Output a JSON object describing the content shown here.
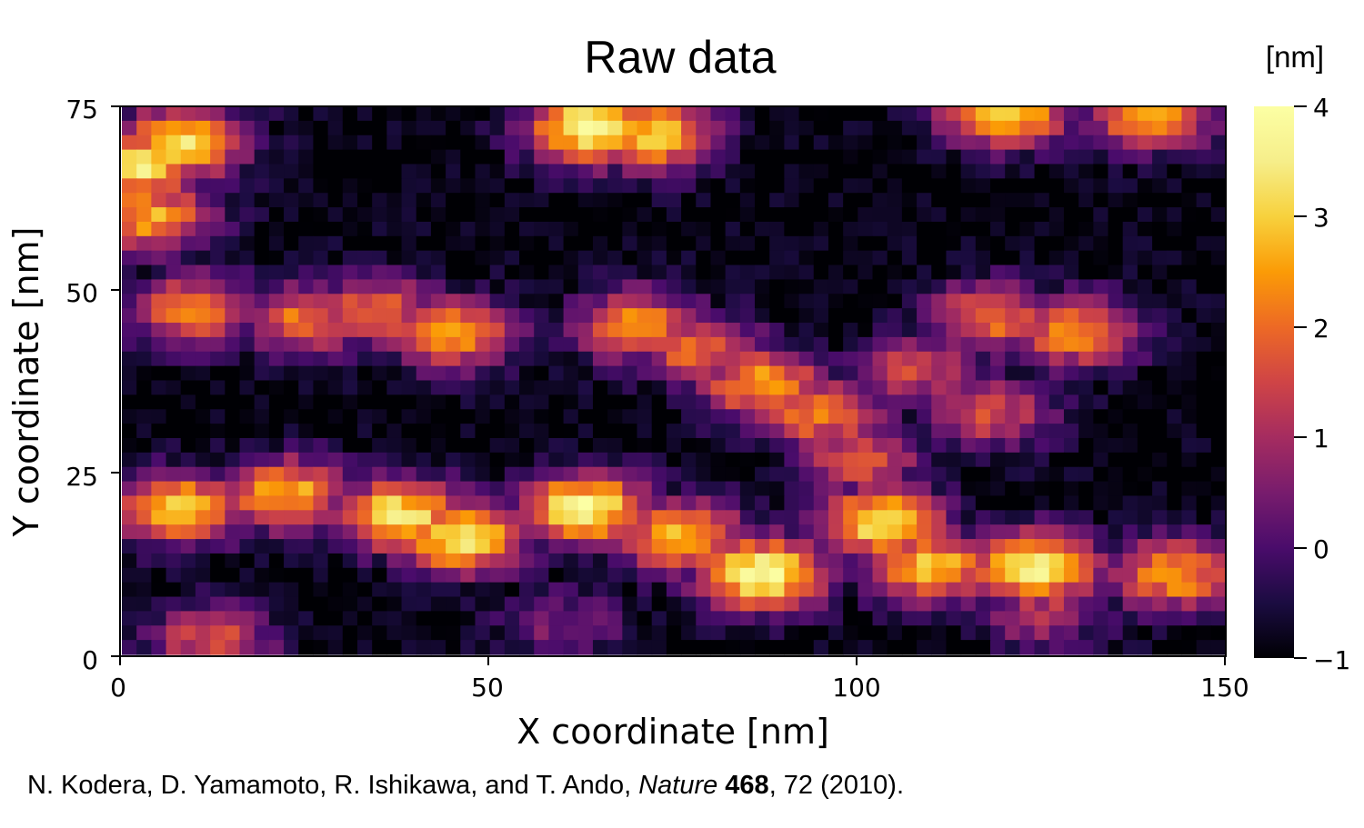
{
  "chart_data": {
    "type": "heatmap",
    "title": "Raw data",
    "xlabel": "X coordinate [nm]",
    "ylabel": "Y coordinate [nm]",
    "xlim": [
      0,
      150
    ],
    "ylim": [
      0,
      75
    ],
    "x_ticks": [
      "0",
      "50",
      "100",
      "150"
    ],
    "y_ticks": [
      "0",
      "25",
      "50",
      "75"
    ],
    "colorbar": {
      "unit": "[nm]",
      "range": [
        -1,
        4
      ],
      "ticks": [
        "−1",
        "0",
        "1",
        "2",
        "3",
        "4"
      ],
      "colormap": "inferno"
    },
    "grid": {
      "x_cells": 75,
      "y_cells": 38
    },
    "features": [
      {
        "x": 2,
        "y": 67,
        "value": 3.6
      },
      {
        "x": 8,
        "y": 70,
        "value": 3.2
      },
      {
        "x": 4,
        "y": 60,
        "value": 2.6
      },
      {
        "x": 64,
        "y": 72,
        "value": 3.9
      },
      {
        "x": 72,
        "y": 71,
        "value": 3.0
      },
      {
        "x": 120,
        "y": 74.5,
        "value": 3.4
      },
      {
        "x": 140,
        "y": 74,
        "value": 2.8
      },
      {
        "x": 10,
        "y": 47,
        "value": 2.3
      },
      {
        "x": 25,
        "y": 46,
        "value": 2.1
      },
      {
        "x": 35,
        "y": 47,
        "value": 2.0
      },
      {
        "x": 45,
        "y": 44,
        "value": 2.6
      },
      {
        "x": 70,
        "y": 45,
        "value": 2.4
      },
      {
        "x": 78,
        "y": 42,
        "value": 2.0
      },
      {
        "x": 87,
        "y": 37,
        "value": 2.6
      },
      {
        "x": 95,
        "y": 33,
        "value": 2.3
      },
      {
        "x": 100,
        "y": 27,
        "value": 1.8
      },
      {
        "x": 118,
        "y": 46,
        "value": 2.1
      },
      {
        "x": 130,
        "y": 44,
        "value": 2.4
      },
      {
        "x": 118,
        "y": 33,
        "value": 1.6
      },
      {
        "x": 108,
        "y": 39,
        "value": 1.5
      },
      {
        "x": 8,
        "y": 20,
        "value": 3.0
      },
      {
        "x": 22,
        "y": 22,
        "value": 2.8
      },
      {
        "x": 38,
        "y": 19,
        "value": 3.4
      },
      {
        "x": 46,
        "y": 16,
        "value": 3.5
      },
      {
        "x": 63,
        "y": 20,
        "value": 3.7
      },
      {
        "x": 76,
        "y": 16,
        "value": 3.0
      },
      {
        "x": 87,
        "y": 11,
        "value": 3.9
      },
      {
        "x": 103,
        "y": 18,
        "value": 3.4
      },
      {
        "x": 110,
        "y": 12,
        "value": 3.0
      },
      {
        "x": 124,
        "y": 12,
        "value": 3.7
      },
      {
        "x": 143,
        "y": 11,
        "value": 2.6
      },
      {
        "x": 12,
        "y": 2,
        "value": 1.6
      },
      {
        "x": 60,
        "y": 4,
        "value": 0.6
      },
      {
        "x": 125,
        "y": 6,
        "value": 1.2
      }
    ]
  },
  "citation": {
    "authors": "N. Kodera, D. Yamamoto, R. Ishikawa, and T. Ando, ",
    "journal": "Nature",
    "volume": "468",
    "rest": ", 72 (2010)."
  }
}
